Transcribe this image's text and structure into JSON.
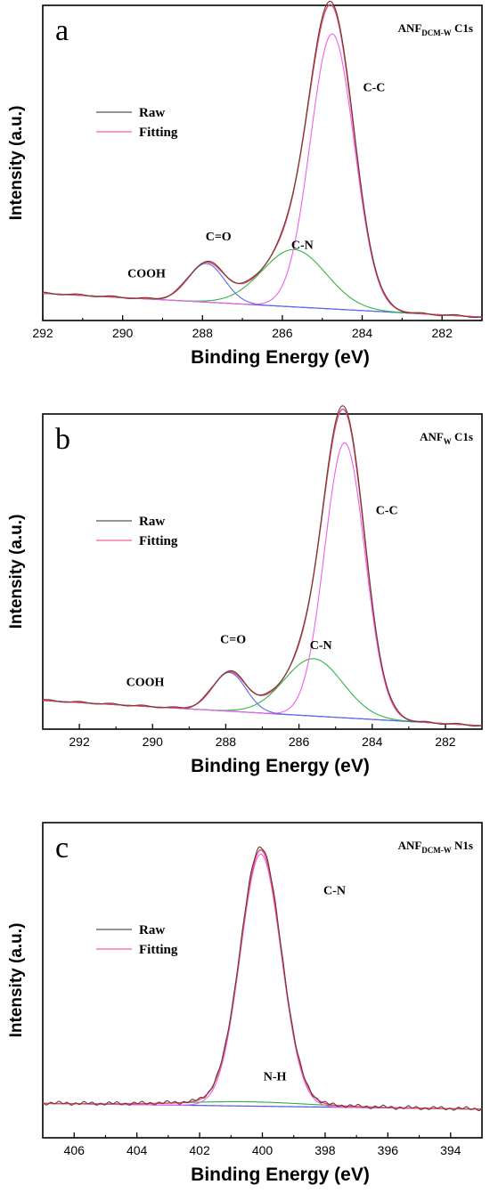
{
  "chart_data": [
    {
      "type": "line",
      "panel": "a",
      "spectrum": {
        "main": "ANF",
        "sub": "DCM-W",
        "suffix": " C1s"
      },
      "xlabel": "Binding Energy (eV)",
      "ylabel": "Intensity (a.u.)",
      "xlim": [
        292,
        281
      ],
      "ticks": [
        292,
        290,
        288,
        286,
        284,
        282
      ],
      "ylim": [
        0,
        1.1
      ],
      "legend": {
        "entries": [
          "Raw",
          "Fitting"
        ],
        "position": "upper-left"
      },
      "baseline": {
        "left": 0.095,
        "right": 0.012
      },
      "components": [
        {
          "name": "COOH",
          "center": 289.1,
          "height": 0.0,
          "width": 0.6
        },
        {
          "name": "C=O",
          "center": 287.9,
          "height": 0.135,
          "width": 0.45
        },
        {
          "name": "C-N",
          "center": 285.7,
          "height": 0.2,
          "width": 0.8
        },
        {
          "name": "C-C",
          "center": 284.75,
          "height": 0.96,
          "width": 0.55
        }
      ],
      "annotations": [
        {
          "text": "COOH",
          "x": 289.4,
          "y": 0.15
        },
        {
          "text": "C=O",
          "x": 287.6,
          "y": 0.28
        },
        {
          "text": "C-N",
          "x": 285.5,
          "y": 0.25
        },
        {
          "text": "C-C",
          "x": 283.7,
          "y": 0.8
        }
      ]
    },
    {
      "type": "line",
      "panel": "b",
      "spectrum": {
        "main": "ANF",
        "sub": "W",
        "suffix": " C1s"
      },
      "xlabel": "Binding Energy (eV)",
      "ylabel": "Intensity (a.u.)",
      "xlim": [
        293,
        281
      ],
      "ticks": [
        292,
        290,
        288,
        286,
        284,
        282
      ],
      "ylim": [
        0,
        1.1
      ],
      "legend": {
        "entries": [
          "Raw",
          "Fitting"
        ],
        "position": "upper-left"
      },
      "baseline": {
        "left": 0.1,
        "right": 0.012
      },
      "components": [
        {
          "name": "COOH",
          "center": 289.1,
          "height": 0.0,
          "width": 0.6
        },
        {
          "name": "C=O",
          "center": 287.9,
          "height": 0.135,
          "width": 0.45
        },
        {
          "name": "C-N",
          "center": 285.6,
          "height": 0.2,
          "width": 0.8
        },
        {
          "name": "C-C",
          "center": 284.75,
          "height": 0.96,
          "width": 0.55
        }
      ],
      "annotations": [
        {
          "text": "COOH",
          "x": 290.2,
          "y": 0.15
        },
        {
          "text": "C=O",
          "x": 287.8,
          "y": 0.3
        },
        {
          "text": "C-N",
          "x": 285.4,
          "y": 0.28
        },
        {
          "text": "C-C",
          "x": 283.6,
          "y": 0.75
        }
      ]
    },
    {
      "type": "line",
      "panel": "c",
      "spectrum": {
        "main": "ANF",
        "sub": "DCM-W",
        "suffix": " N1s"
      },
      "xlabel": "Binding Energy (eV)",
      "ylabel": "Intensity (a.u.)",
      "xlim": [
        407,
        393
      ],
      "ticks": [
        406,
        404,
        402,
        400,
        398,
        396,
        394
      ],
      "ylim": [
        0,
        1.1
      ],
      "legend": {
        "entries": [
          "Raw",
          "Fitting"
        ],
        "position": "upper-left"
      },
      "baseline": {
        "left": 0.12,
        "right": 0.1
      },
      "components": [
        {
          "name": "N-H",
          "center": 400.5,
          "height": 0.015,
          "width": 2.0
        },
        {
          "name": "C-N",
          "center": 400.05,
          "height": 0.88,
          "width": 0.65
        }
      ],
      "annotations": [
        {
          "text": "C-N",
          "x": 397.7,
          "y": 0.85
        },
        {
          "text": "N-H",
          "x": 399.6,
          "y": 0.2
        }
      ]
    }
  ]
}
